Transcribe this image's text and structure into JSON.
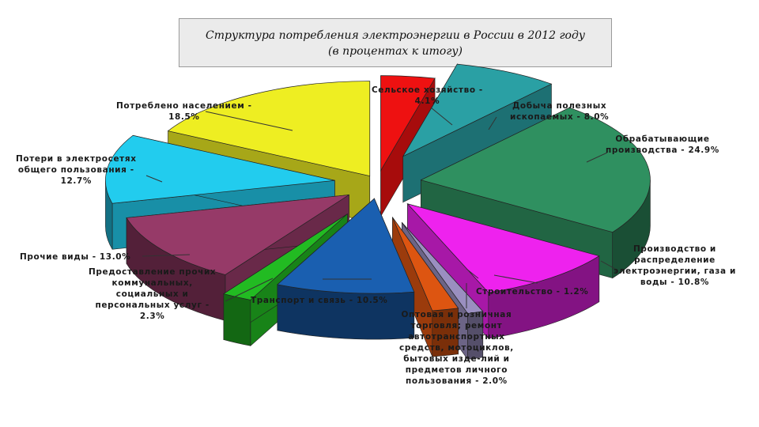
{
  "title": {
    "line1": "Структура потребления электроэнергии в России в 2012 году",
    "line2": "(в процентах к итогу)"
  },
  "chart_data": {
    "type": "pie",
    "style": "3d-exploded",
    "title": "Структура потребления электроэнергии в России в 2012 году (в процентах к итогу)",
    "unit": "%",
    "slices": [
      {
        "name": "Сельское хозяйство",
        "value": 4.1,
        "color": "#ee1111",
        "label_lines": [
          "Сельское хозяйство -",
          "4.1%"
        ]
      },
      {
        "name": "Добыча полезных ископаемых",
        "value": 8.0,
        "color": "#2aa0a4",
        "label_lines": [
          "Добыча полезных",
          "ископаемых - 8.0%"
        ]
      },
      {
        "name": "Обрабатывающие производства",
        "value": 24.9,
        "color": "#2f9060",
        "label_lines": [
          "Обрабатывающие",
          "производства - 24.9%"
        ]
      },
      {
        "name": "Производство и распределение электроэнергии, газа и воды",
        "value": 10.8,
        "color": "#ee22ee",
        "label_lines": [
          "Производство и",
          "распределение",
          "электроэнергии, газа и",
          "воды - 10.8%"
        ]
      },
      {
        "name": "Строительство",
        "value": 1.2,
        "color": "#9a8fc0",
        "label_lines": [
          "Строительство - 1.2%"
        ]
      },
      {
        "name": "Оптовая и розничная торговля; ремонт автотранспортных средств, мотоциклов, бытовых изделий и предметов личного пользования",
        "value": 2.0,
        "color": "#dd5511",
        "label_lines": [
          "Оптовая и розничная",
          "торговля; ремонт",
          "автотранспортных",
          "средств, мотоциклов,",
          "бытовых изде-лий и",
          "предметов личного",
          "пользования - 2.0%"
        ]
      },
      {
        "name": "Транспорт и связь",
        "value": 10.5,
        "color": "#1a5fb0",
        "label_lines": [
          "Транспорт и связь - 10.5%"
        ]
      },
      {
        "name": "Предоставление прочих коммунальных, социальных и персональных услуг",
        "value": 2.3,
        "color": "#22bb22",
        "label_lines": [
          "Предоставление прочих",
          "коммунальных,",
          "социальных и",
          "персональных услуг -",
          "2.3%"
        ]
      },
      {
        "name": "Прочие виды",
        "value": 13.0,
        "color": "#963a68",
        "label_lines": [
          "Прочие виды - 13.0%"
        ]
      },
      {
        "name": "Потери в электросетях общего пользования",
        "value": 12.7,
        "color": "#22ccee",
        "label_lines": [
          "Потери в электросетях",
          "общего пользования -",
          "12.7%"
        ]
      },
      {
        "name": "Потреблено населением",
        "value": 18.5,
        "color": "#eeee22",
        "label_lines": [
          "Потреблено населением -",
          "18.5%"
        ]
      }
    ]
  }
}
